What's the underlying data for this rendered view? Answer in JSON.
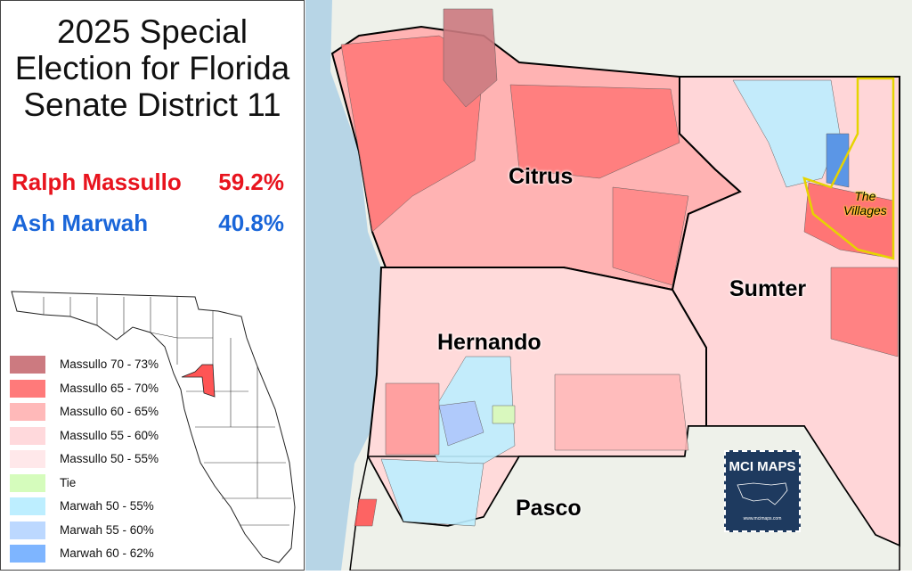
{
  "title": {
    "line1": "2025 Special",
    "line2": "Election for Florida",
    "line3": "Senate District 11"
  },
  "results": [
    {
      "name": "Ralph Massullo",
      "pct": "59.2%",
      "color": "#e8141e"
    },
    {
      "name": "Ash Marwah",
      "pct": "40.8%",
      "color": "#1a66d9"
    }
  ],
  "legend": [
    {
      "label": "Massullo 70 - 73%",
      "color": "#cc7a80"
    },
    {
      "label": "Massullo 65 - 70%",
      "color": "#ff7a7a"
    },
    {
      "label": "Massullo 60 - 65%",
      "color": "#ffb9b9"
    },
    {
      "label": "Massullo 55 - 60%",
      "color": "#ffd9dc"
    },
    {
      "label": "Massullo 50 - 55%",
      "color": "#ffe8ea"
    },
    {
      "label": "Tie",
      "color": "#d5fcbc"
    },
    {
      "label": "Marwah 50 - 55%",
      "color": "#bdeeff"
    },
    {
      "label": "Marwah 55 - 60%",
      "color": "#bcd8ff"
    },
    {
      "label": "Marwah 60 - 62%",
      "color": "#7eb5ff"
    }
  ],
  "map": {
    "counties": [
      "Citrus",
      "Sumter",
      "Hernando",
      "Pasco"
    ],
    "area_label": "The Villages"
  },
  "logo": {
    "name": "MCI MAPS",
    "url": "www.mcimaps.com"
  }
}
